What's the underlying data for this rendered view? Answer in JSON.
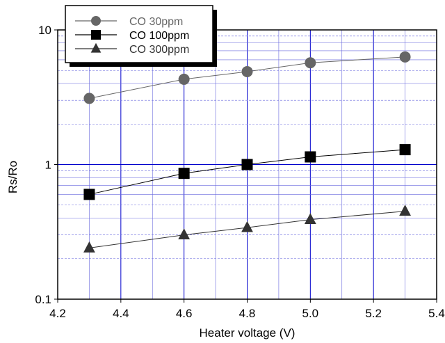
{
  "chart_data": {
    "type": "line",
    "title": "",
    "xlabel": "Heater voltage (V)",
    "ylabel": "Rs/Ro",
    "xlim": [
      4.2,
      5.4
    ],
    "ylim": [
      0.1,
      10
    ],
    "yscale": "log",
    "grid": true,
    "x_ticks": [
      4.2,
      4.4,
      4.6,
      4.8,
      5.0,
      5.2,
      5.4
    ],
    "x_tick_labels": [
      "4.2",
      "4.4",
      "4.6",
      "4.8",
      "5.0",
      "5.2",
      "5.4"
    ],
    "y_ticks": [
      0.1,
      1,
      10
    ],
    "y_tick_labels": [
      "0.1",
      "1",
      "10"
    ],
    "legend_position": "top-left",
    "series": [
      {
        "name": "CO 30ppm",
        "marker": "circle",
        "color": "#666666",
        "x": [
          4.3,
          4.6,
          4.8,
          5.0,
          5.3
        ],
        "y": [
          3.1,
          4.3,
          4.9,
          5.7,
          6.3
        ]
      },
      {
        "name": "CO 100ppm",
        "marker": "square",
        "color": "#000000",
        "x": [
          4.3,
          4.6,
          4.8,
          5.0,
          5.3
        ],
        "y": [
          0.6,
          0.86,
          1.0,
          1.14,
          1.29
        ]
      },
      {
        "name": "CO 300ppm",
        "marker": "triangle",
        "color": "#333333",
        "x": [
          4.3,
          4.6,
          4.8,
          5.0,
          5.3
        ],
        "y": [
          0.24,
          0.3,
          0.34,
          0.39,
          0.45
        ]
      }
    ]
  },
  "colors": {
    "major_grid": "#0000cc",
    "minor_grid": "#6666dd",
    "frame": "#000000"
  }
}
